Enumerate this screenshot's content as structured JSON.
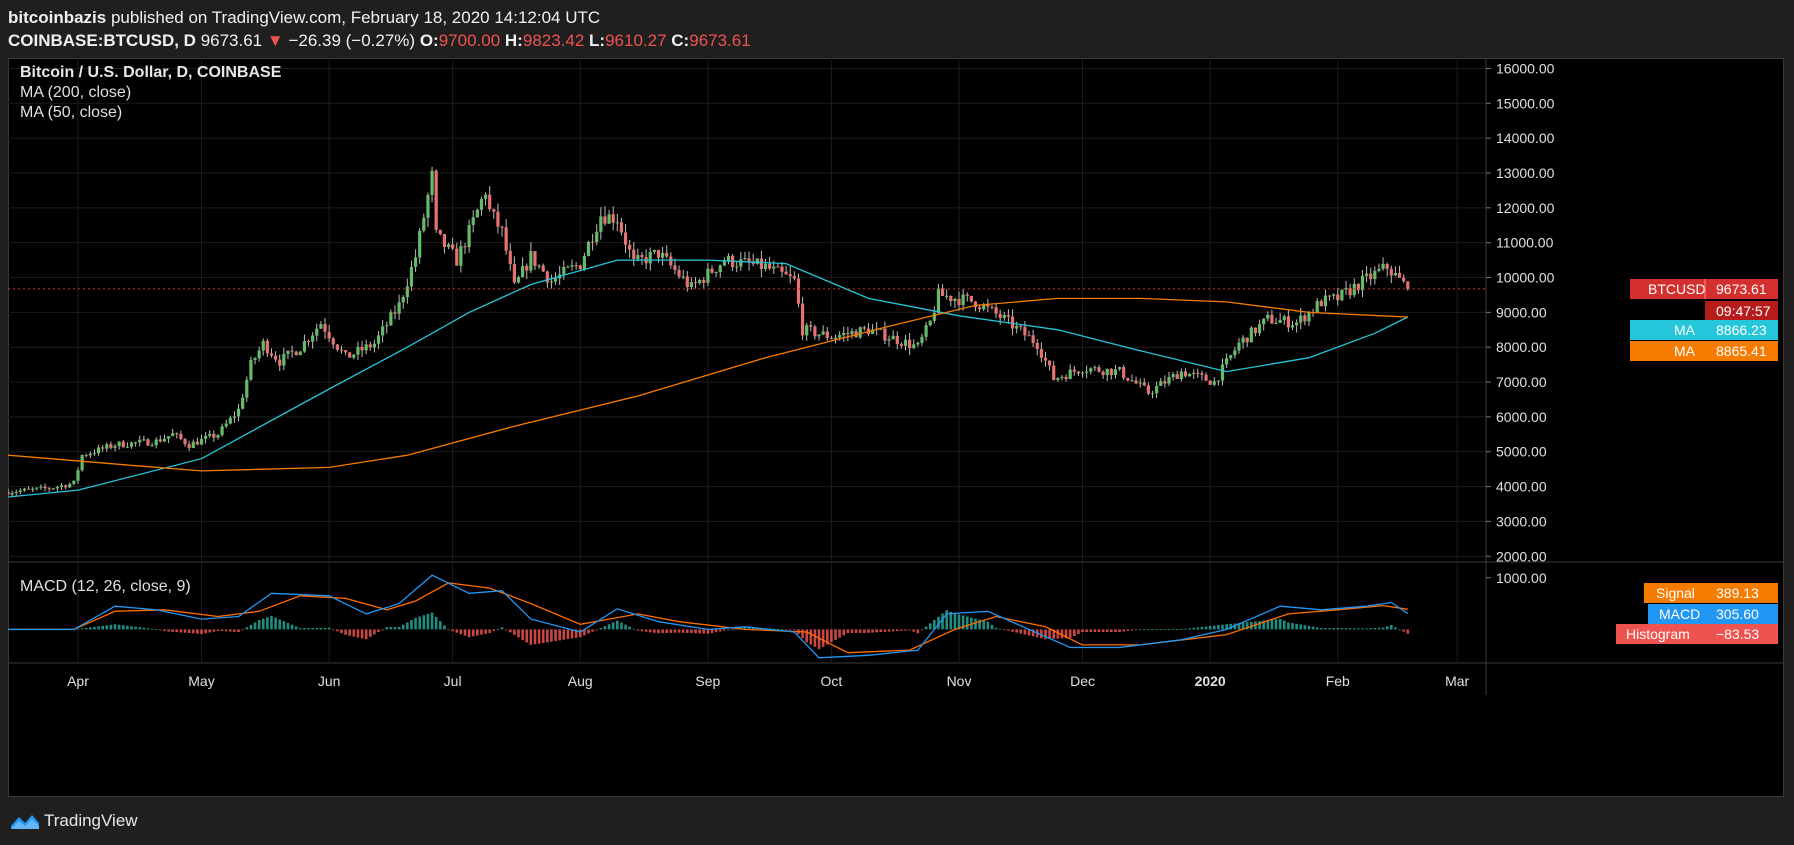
{
  "header": {
    "author": "bitcoinbazis",
    "published": "published on TradingView.com, February 18, 2020 14:12:04 UTC",
    "symbol": "COINBASE:BTCUSD, D",
    "last": "9673.61",
    "arrow": "▼",
    "change": "−26.39 (−0.27%)",
    "o_label": "O:",
    "o_value": "9700.00",
    "h_label": "H:",
    "h_value": "9823.42",
    "l_label": "L:",
    "l_value": "9610.27",
    "c_label": "C:",
    "c_value": "9673.61"
  },
  "legend": {
    "title": "Bitcoin / U.S. Dollar, D, COINBASE",
    "ma200": "MA (200, close)",
    "ma50": "MA (50, close)",
    "macd": "MACD (12, 26, close, 9)"
  },
  "badges": {
    "price_label": "BTCUSD",
    "price_value": "9673.61",
    "countdown": "09:47:57",
    "ma50_label": "MA",
    "ma50_value": "8866.23",
    "ma200_label": "MA",
    "ma200_value": "8865.41",
    "signal_label": "Signal",
    "signal_value": "389.13",
    "macd_label": "MACD",
    "macd_value": "305.60",
    "hist_label": "Histogram",
    "hist_value": "−83.53"
  },
  "footer": {
    "brand": "TradingView",
    "logo_icon": "tradingview-logo-icon"
  },
  "colors": {
    "up": "#26a69a",
    "down": "#ef5350",
    "candle_up": "#66bb6a",
    "candle_down": "#e57373",
    "ma50": "#26c6da",
    "ma200": "#f57c00",
    "macd": "#2196f3",
    "signal": "#ff6d00",
    "price_badge": "#d32f2f",
    "ma50_badge": "#26c6da",
    "ma200_badge": "#f57c00"
  },
  "chart_data": [
    {
      "type": "candlestick",
      "title": "Bitcoin / U.S. Dollar, D, COINBASE",
      "x_ticks": [
        "Apr",
        "May",
        "Jun",
        "Jul",
        "Aug",
        "Sep",
        "Oct",
        "Nov",
        "Dec",
        "2020",
        "Feb",
        "Mar"
      ],
      "x_range": [
        "2019-03-15",
        "2020-03-08"
      ],
      "y_ticks": [
        2000,
        3000,
        4000,
        5000,
        6000,
        7000,
        8000,
        9000,
        10000,
        11000,
        12000,
        13000,
        14000,
        15000,
        16000
      ],
      "y_tick_labels": [
        "2000.00",
        "3000.00",
        "4000.00",
        "5000.00",
        "6000.00",
        "7000.00",
        "8000.00",
        "9000.00",
        "10000.00",
        "11000.00",
        "12000.00",
        "13000.00",
        "14000.00",
        "15000.00",
        "16000.00"
      ],
      "ylim": [
        1950,
        16300
      ],
      "grid": true,
      "close_path": [
        [
          "2019-03-15",
          3850
        ],
        [
          "2019-03-25",
          3950
        ],
        [
          "2019-03-31",
          4100
        ],
        [
          "2019-04-02",
          4900
        ],
        [
          "2019-04-10",
          5200
        ],
        [
          "2019-04-20",
          5300
        ],
        [
          "2019-04-24",
          5500
        ],
        [
          "2019-04-28",
          5200
        ],
        [
          "2019-05-05",
          5500
        ],
        [
          "2019-05-10",
          6200
        ],
        [
          "2019-05-13",
          7500
        ],
        [
          "2019-05-16",
          8100
        ],
        [
          "2019-05-20",
          7600
        ],
        [
          "2019-05-25",
          8000
        ],
        [
          "2019-05-30",
          8700
        ],
        [
          "2019-06-05",
          7700
        ],
        [
          "2019-06-12",
          8100
        ],
        [
          "2019-06-18",
          9200
        ],
        [
          "2019-06-22",
          10600
        ],
        [
          "2019-06-26",
          12900
        ],
        [
          "2019-06-27",
          11200
        ],
        [
          "2019-07-02",
          10500
        ],
        [
          "2019-07-05",
          11300
        ],
        [
          "2019-07-09",
          12500
        ],
        [
          "2019-07-10",
          11900
        ],
        [
          "2019-07-13",
          11300
        ],
        [
          "2019-07-16",
          9700
        ],
        [
          "2019-07-20",
          10600
        ],
        [
          "2019-07-25",
          9900
        ],
        [
          "2019-08-01",
          10400
        ],
        [
          "2019-08-06",
          11800
        ],
        [
          "2019-08-10",
          11700
        ],
        [
          "2019-08-14",
          10400
        ],
        [
          "2019-08-20",
          10700
        ],
        [
          "2019-08-28",
          9700
        ],
        [
          "2019-09-05",
          10500
        ],
        [
          "2019-09-15",
          10300
        ],
        [
          "2019-09-22",
          9900
        ],
        [
          "2019-09-24",
          8500
        ],
        [
          "2019-10-01",
          8300
        ],
        [
          "2019-10-10",
          8500
        ],
        [
          "2019-10-15",
          8300
        ],
        [
          "2019-10-22",
          8000
        ],
        [
          "2019-10-25",
          8700
        ],
        [
          "2019-10-27",
          9500
        ],
        [
          "2019-11-05",
          9300
        ],
        [
          "2019-11-12",
          8800
        ],
        [
          "2019-11-20",
          8100
        ],
        [
          "2019-11-24",
          7100
        ],
        [
          "2019-12-01",
          7400
        ],
        [
          "2019-12-10",
          7300
        ],
        [
          "2019-12-17",
          6700
        ],
        [
          "2019-12-25",
          7300
        ],
        [
          "2020-01-02",
          7000
        ],
        [
          "2020-01-08",
          8100
        ],
        [
          "2020-01-15",
          8800
        ],
        [
          "2020-01-22",
          8700
        ],
        [
          "2020-01-28",
          9300
        ],
        [
          "2020-02-01",
          9400
        ],
        [
          "2020-02-06",
          9800
        ],
        [
          "2020-02-10",
          10100
        ],
        [
          "2020-02-13",
          10300
        ],
        [
          "2020-02-18",
          9673.61
        ]
      ],
      "ma50": [
        [
          "2019-03-15",
          3700
        ],
        [
          "2019-04-01",
          3900
        ],
        [
          "2019-05-01",
          4800
        ],
        [
          "2019-06-01",
          6800
        ],
        [
          "2019-06-20",
          8000
        ],
        [
          "2019-07-05",
          9000
        ],
        [
          "2019-07-20",
          9800
        ],
        [
          "2019-08-10",
          10500
        ],
        [
          "2019-09-01",
          10500
        ],
        [
          "2019-09-20",
          10400
        ],
        [
          "2019-10-10",
          9400
        ],
        [
          "2019-11-01",
          8900
        ],
        [
          "2019-11-25",
          8500
        ],
        [
          "2019-12-15",
          7900
        ],
        [
          "2020-01-05",
          7300
        ],
        [
          "2020-01-25",
          7700
        ],
        [
          "2020-02-10",
          8400
        ],
        [
          "2020-02-18",
          8866.23
        ]
      ],
      "ma200": [
        [
          "2019-03-15",
          4900
        ],
        [
          "2019-04-15",
          4600
        ],
        [
          "2019-05-01",
          4450
        ],
        [
          "2019-06-01",
          4550
        ],
        [
          "2019-06-20",
          4900
        ],
        [
          "2019-07-15",
          5700
        ],
        [
          "2019-08-15",
          6600
        ],
        [
          "2019-09-15",
          7700
        ],
        [
          "2019-10-15",
          8600
        ],
        [
          "2019-11-05",
          9200
        ],
        [
          "2019-11-25",
          9400
        ],
        [
          "2019-12-15",
          9400
        ],
        [
          "2020-01-05",
          9300
        ],
        [
          "2020-01-25",
          9000
        ],
        [
          "2020-02-18",
          8865.41
        ]
      ],
      "last_price": 9673.61
    },
    {
      "type": "macd",
      "title": "MACD (12, 26, close, 9)",
      "y_ticks": [
        1000
      ],
      "y_tick_labels": [
        "1000.00"
      ],
      "ylim": [
        -650,
        1150
      ],
      "macd": [
        [
          "2019-03-15",
          0
        ],
        [
          "2019-03-31",
          0
        ],
        [
          "2019-04-10",
          450
        ],
        [
          "2019-04-20",
          380
        ],
        [
          "2019-05-01",
          200
        ],
        [
          "2019-05-10",
          250
        ],
        [
          "2019-05-18",
          700
        ],
        [
          "2019-06-01",
          650
        ],
        [
          "2019-06-10",
          300
        ],
        [
          "2019-06-18",
          500
        ],
        [
          "2019-06-26",
          1050
        ],
        [
          "2019-07-05",
          700
        ],
        [
          "2019-07-13",
          750
        ],
        [
          "2019-07-20",
          200
        ],
        [
          "2019-08-01",
          -50
        ],
        [
          "2019-08-10",
          400
        ],
        [
          "2019-08-20",
          150
        ],
        [
          "2019-09-01",
          0
        ],
        [
          "2019-09-10",
          50
        ],
        [
          "2019-09-22",
          -50
        ],
        [
          "2019-09-28",
          -550
        ],
        [
          "2019-10-10",
          -500
        ],
        [
          "2019-10-22",
          -400
        ],
        [
          "2019-10-29",
          300
        ],
        [
          "2019-11-08",
          350
        ],
        [
          "2019-11-18",
          0
        ],
        [
          "2019-11-28",
          -350
        ],
        [
          "2019-12-10",
          -350
        ],
        [
          "2019-12-25",
          -200
        ],
        [
          "2020-01-05",
          0
        ],
        [
          "2020-01-18",
          450
        ],
        [
          "2020-01-28",
          380
        ],
        [
          "2020-02-08",
          450
        ],
        [
          "2020-02-14",
          520
        ],
        [
          "2020-02-18",
          305.6
        ]
      ],
      "signal": [
        [
          "2019-03-15",
          0
        ],
        [
          "2019-03-31",
          0
        ],
        [
          "2019-04-10",
          350
        ],
        [
          "2019-04-22",
          380
        ],
        [
          "2019-05-05",
          250
        ],
        [
          "2019-05-15",
          350
        ],
        [
          "2019-05-25",
          650
        ],
        [
          "2019-06-05",
          600
        ],
        [
          "2019-06-15",
          380
        ],
        [
          "2019-06-22",
          550
        ],
        [
          "2019-06-30",
          900
        ],
        [
          "2019-07-10",
          800
        ],
        [
          "2019-07-20",
          500
        ],
        [
          "2019-08-01",
          100
        ],
        [
          "2019-08-15",
          300
        ],
        [
          "2019-08-25",
          150
        ],
        [
          "2019-09-10",
          0
        ],
        [
          "2019-09-25",
          -50
        ],
        [
          "2019-10-05",
          -450
        ],
        [
          "2019-10-20",
          -400
        ],
        [
          "2019-10-31",
          0
        ],
        [
          "2019-11-10",
          250
        ],
        [
          "2019-11-22",
          50
        ],
        [
          "2019-12-01",
          -300
        ],
        [
          "2019-12-15",
          -300
        ],
        [
          "2020-01-05",
          -100
        ],
        [
          "2020-01-20",
          300
        ],
        [
          "2020-02-01",
          380
        ],
        [
          "2020-02-12",
          460
        ],
        [
          "2020-02-18",
          389.13
        ]
      ],
      "histogram_last": -83.53
    }
  ]
}
